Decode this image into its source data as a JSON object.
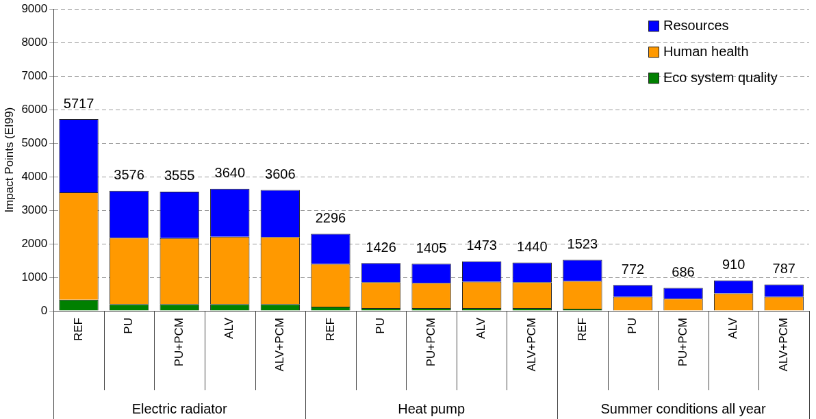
{
  "chart_data": {
    "type": "bar",
    "stacked": true,
    "ylabel": "Impact Points (EI99)",
    "categories": [
      "REF",
      "PU",
      "PU+PCM",
      "ALV",
      "ALV+PCM",
      "REF",
      "PU",
      "PU+PCM",
      "ALV",
      "ALV+PCM",
      "REF",
      "PU",
      "PU+PCM",
      "ALV",
      "ALV+PCM"
    ],
    "series": [
      {
        "name": "Eco system quality",
        "color": "#008000",
        "values": [
          330,
          200,
          200,
          200,
          200,
          120,
          80,
          80,
          80,
          80,
          60,
          null,
          null,
          null,
          null
        ]
      },
      {
        "name": "Human health",
        "color": "#ff9900",
        "values": [
          3200,
          1980,
          1970,
          2010,
          2000,
          1280,
          770,
          750,
          790,
          770,
          830,
          420,
          360,
          520,
          420
        ]
      },
      {
        "name": "Resources",
        "color": "#0000ff",
        "values": [
          2187,
          1396,
          1385,
          1430,
          1406,
          896,
          576,
          575,
          603,
          590,
          633,
          352,
          326,
          390,
          367
        ]
      }
    ],
    "totals": [
      "5717",
      "3576",
      "3555",
      "3640",
      "3606",
      "2296",
      "1426",
      "1405",
      "1473",
      "1440",
      "1523",
      "772",
      "686",
      "910",
      "787"
    ],
    "annotations": [
      "Electric radiator",
      "Heat pump",
      "Summer conditions all year"
    ],
    "ylim": [
      0,
      9000
    ],
    "yticks": [
      0,
      1000,
      2000,
      3000,
      4000,
      5000,
      6000,
      7000,
      8000,
      9000
    ],
    "grid": "y",
    "legend": "top right"
  }
}
